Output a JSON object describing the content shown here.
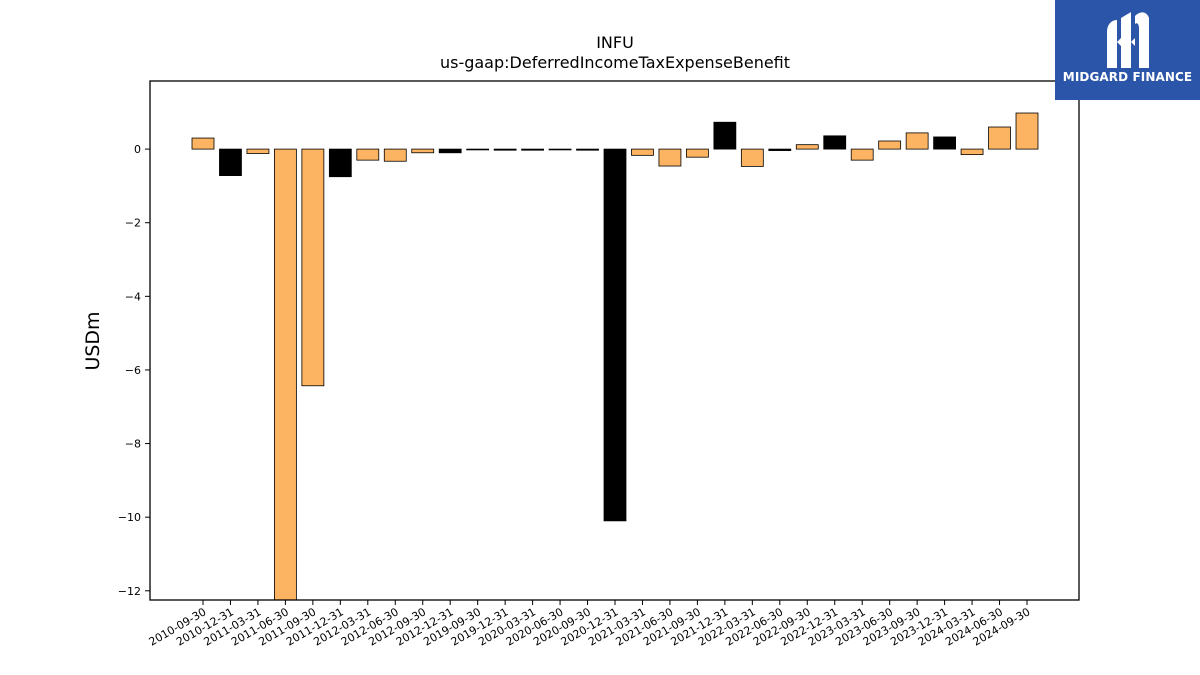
{
  "chart_data": {
    "type": "bar",
    "title": "INFU",
    "subtitle": "us-gaap:DeferredIncomeTaxExpenseBenefit",
    "ylabel": "USDm",
    "xlabel": "",
    "ylim": [
      -12.25,
      1.85
    ],
    "yticks": [
      0,
      -2,
      -4,
      -6,
      -8,
      -10,
      -12
    ],
    "grid": false,
    "categories": [
      "2010-09-30",
      "2010-12-31",
      "2011-03-31",
      "2011-06-30",
      "2011-09-30",
      "2011-12-31",
      "2012-03-31",
      "2012-06-30",
      "2012-09-30",
      "2012-12-31",
      "2019-09-30",
      "2019-12-31",
      "2020-03-31",
      "2020-06-30",
      "2020-09-30",
      "2020-12-31",
      "2021-03-31",
      "2021-06-30",
      "2021-09-30",
      "2021-12-31",
      "2022-03-31",
      "2022-06-30",
      "2022-09-30",
      "2022-12-31",
      "2023-03-31",
      "2023-06-30",
      "2023-09-30",
      "2023-12-31",
      "2024-03-31",
      "2024-06-30",
      "2024-09-30"
    ],
    "values": [
      0.3,
      -0.72,
      -0.12,
      -12.3,
      -6.43,
      -0.75,
      -0.3,
      -0.33,
      -0.1,
      -0.1,
      -0.02,
      -0.03,
      -0.03,
      -0.02,
      -0.03,
      -10.1,
      -0.17,
      -0.46,
      -0.22,
      0.73,
      -0.47,
      -0.04,
      0.12,
      0.36,
      -0.3,
      0.22,
      0.44,
      0.33,
      -0.15,
      0.6,
      0.98
    ],
    "bar_colors": [
      "#FDB462",
      "#000000",
      "#FDB462",
      "#FDB462",
      "#FDB462",
      "#000000",
      "#FDB462",
      "#FDB462",
      "#FDB462",
      "#000000",
      "#FDB462",
      "#000000",
      "#000000",
      "#FDB462",
      "#000000",
      "#000000",
      "#FDB462",
      "#FDB462",
      "#FDB462",
      "#000000",
      "#FDB462",
      "#000000",
      "#FDB462",
      "#000000",
      "#FDB462",
      "#FDB462",
      "#FDB462",
      "#000000",
      "#FDB462",
      "#FDB462",
      "#FDB462"
    ]
  },
  "brand": {
    "name": "MIDGARD FINANCE",
    "color": "#2a55a8"
  }
}
